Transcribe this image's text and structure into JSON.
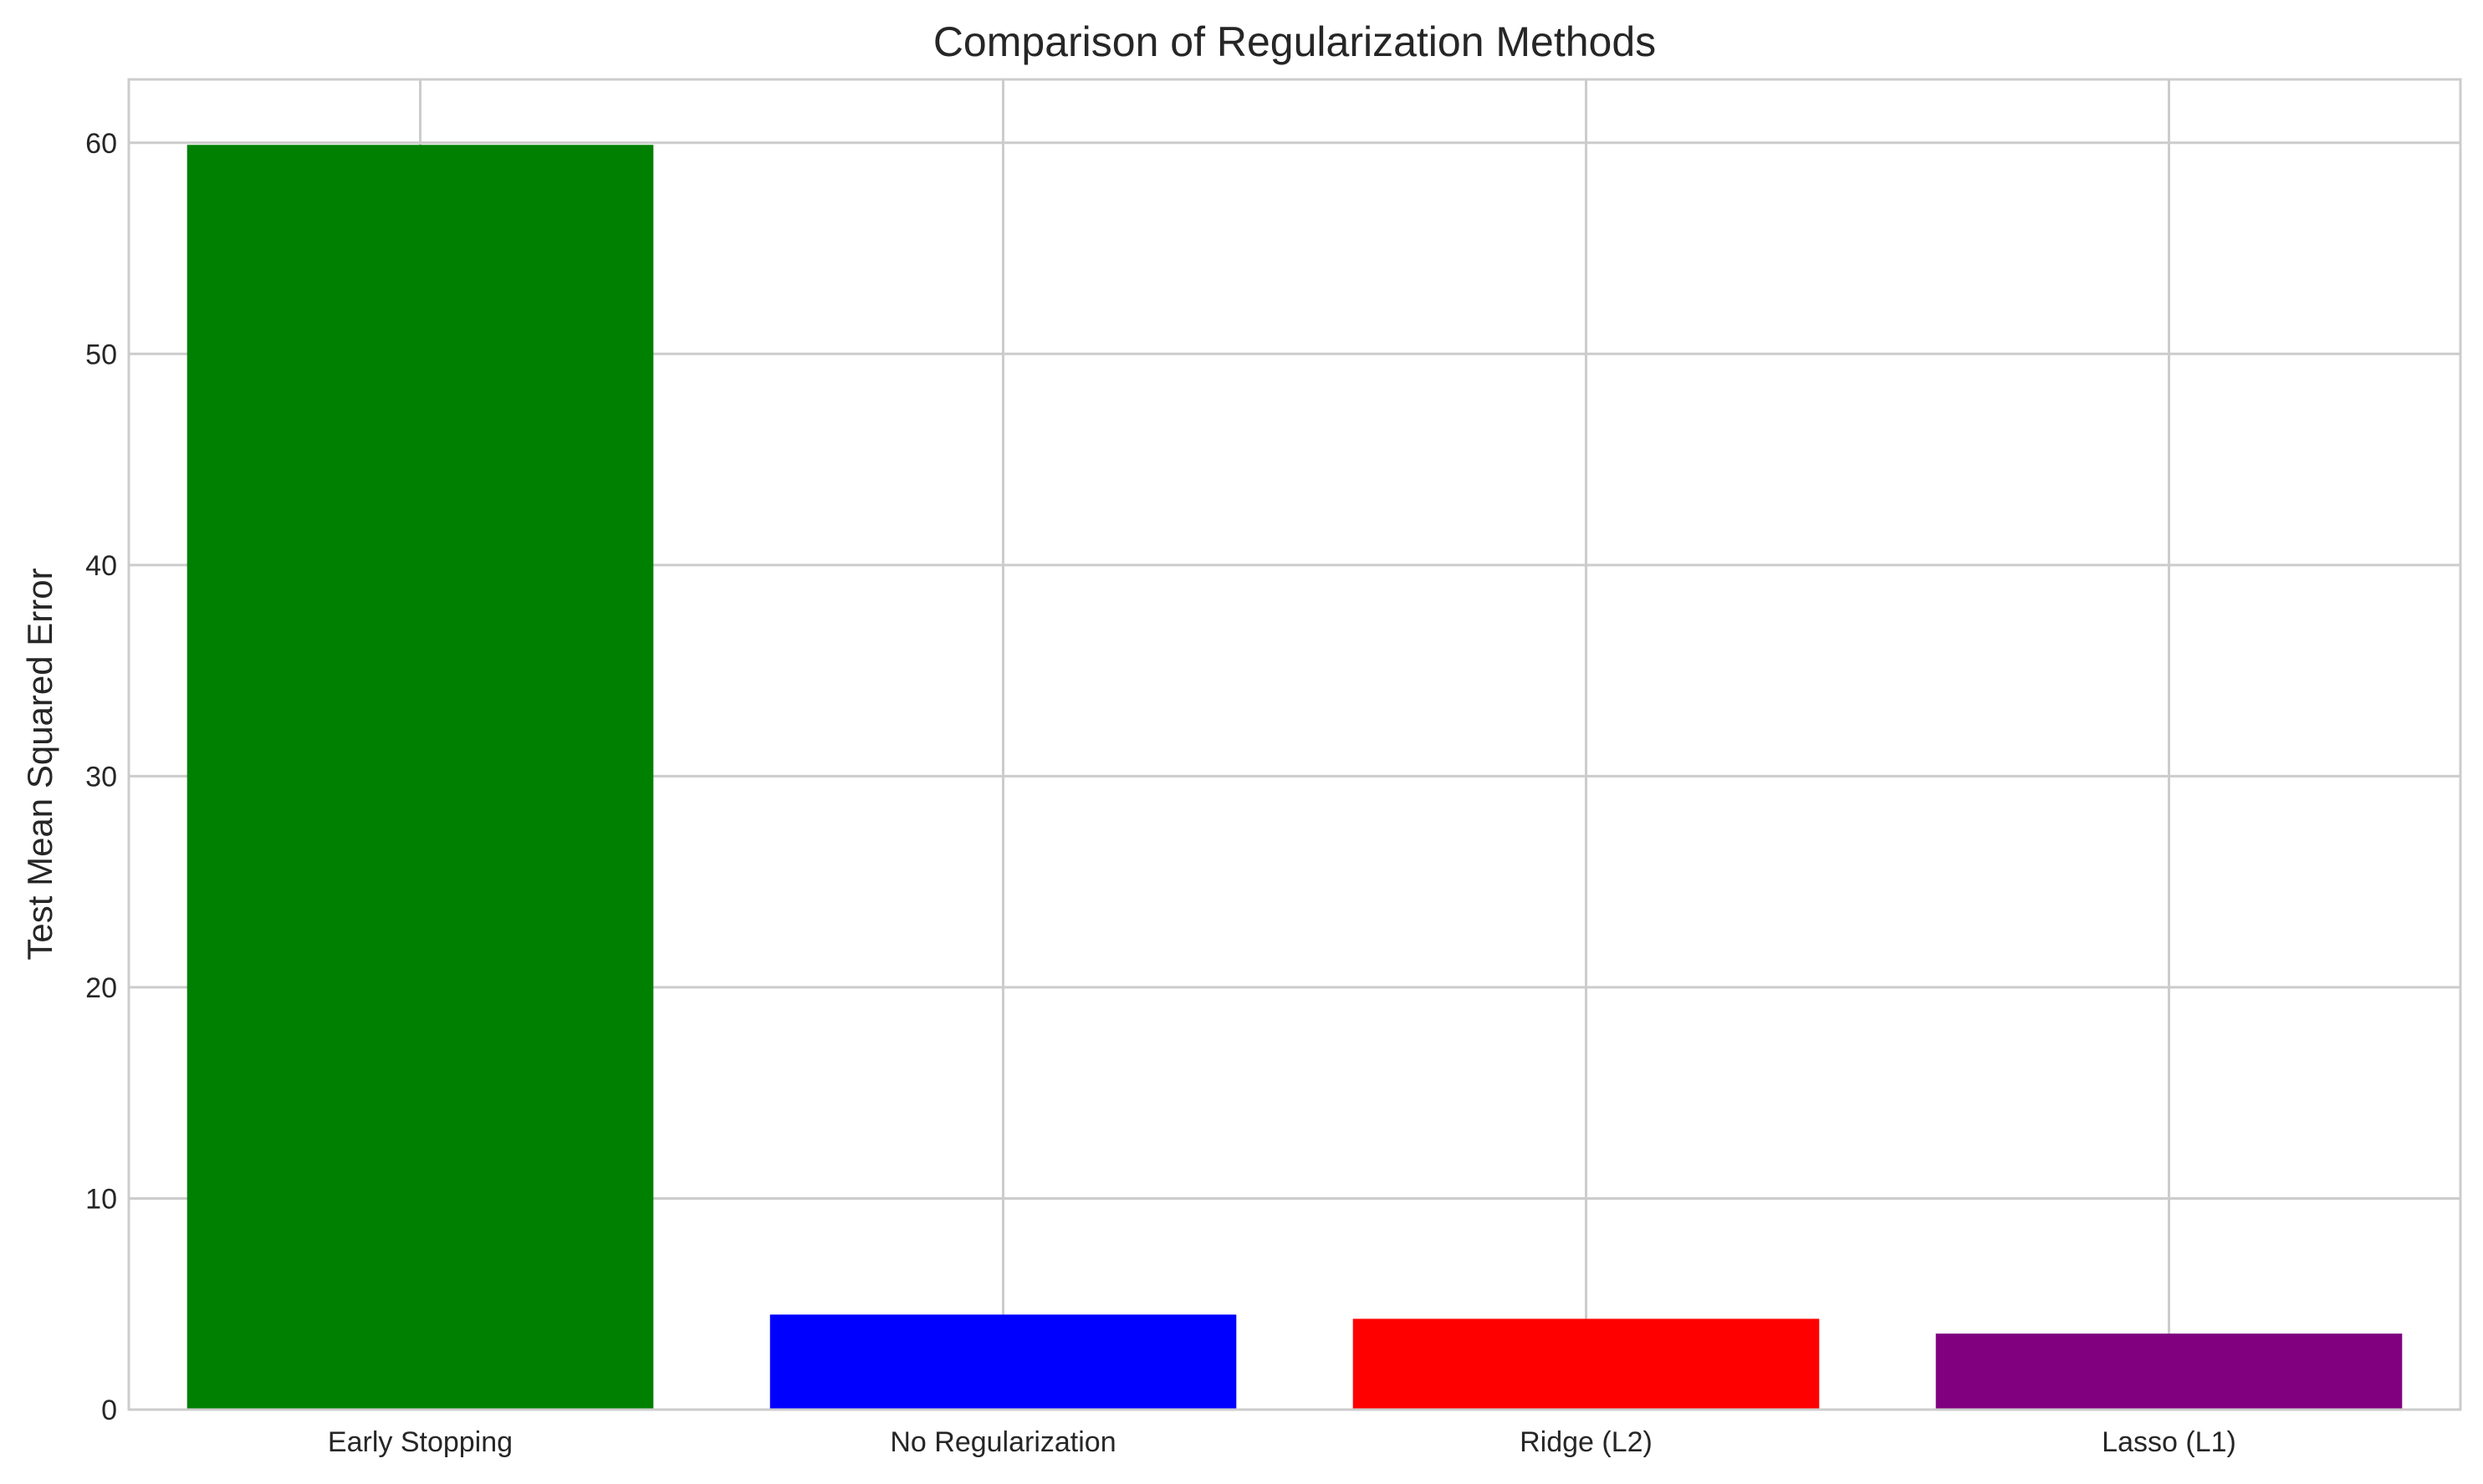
{
  "chart_data": {
    "type": "bar",
    "title": "Comparison of Regularization Methods",
    "xlabel": "",
    "ylabel": "Test Mean Squared Error",
    "categories": [
      "Early Stopping",
      "No Regularization",
      "Ridge (L2)",
      "Lasso (L1)"
    ],
    "values": [
      59.9,
      4.5,
      4.3,
      3.6
    ],
    "colors": [
      "#008000",
      "#0000ff",
      "#ff0000",
      "#800080"
    ],
    "ylim": [
      0,
      63
    ],
    "yticks": [
      0,
      10,
      20,
      30,
      40,
      50,
      60
    ],
    "ytick_labels": [
      "0",
      "10",
      "20",
      "30",
      "40",
      "50",
      "60"
    ],
    "grid": true,
    "legend": "none"
  }
}
